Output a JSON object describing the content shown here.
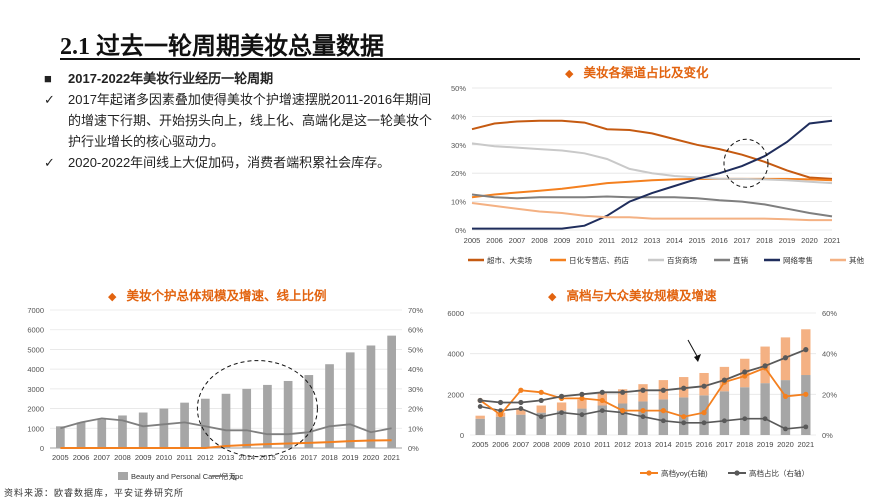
{
  "page_title": "2.1 过去一轮周期美妆总量数据",
  "bullets": [
    {
      "marker": "■",
      "text": "2017-2022年美妆行业经历一轮周期"
    },
    {
      "marker": "✓",
      "text": "2017年起诸多因素叠加使得美妆个护增速摆脱2011-2016年期间的增速下行期、开始拐头向上，线上化、高端化是这一轮美妆个护行业增长的核心驱动力。"
    },
    {
      "marker": "✓",
      "text": "2020-2022年间线上大促加码，消费者端积累社会库存。"
    }
  ],
  "source": "资料来源：欧睿数据库，平安证券研究所",
  "charts": [
    {
      "marker": "◆",
      "title": "美妆各渠道占比及变化"
    },
    {
      "marker": "◆",
      "title": "美妆个护总体规模及增速、线上比例"
    },
    {
      "marker": "◆",
      "title": "高档与大众美妆规模及增速"
    }
  ],
  "chart_data": [
    {
      "type": "line",
      "title": "美妆各渠道占比及变化",
      "x": [
        "2005",
        "2006",
        "2007",
        "2008",
        "2009",
        "2010",
        "2011",
        "2012",
        "2013",
        "2014",
        "2015",
        "2016",
        "2017",
        "2018",
        "2019",
        "2020",
        "2021"
      ],
      "ylim": [
        0,
        50
      ],
      "yticks": [
        "0%",
        "10%",
        "20%",
        "30%",
        "40%",
        "50%"
      ],
      "series": [
        {
          "name": "超市、大卖场",
          "color": "#c55a11",
          "values": [
            35.5,
            37.5,
            38.2,
            38.5,
            38.5,
            37.8,
            35.5,
            35.2,
            34,
            32,
            30,
            28.5,
            26.5,
            24,
            21,
            18.5,
            18
          ]
        },
        {
          "name": "日化专营店、药店",
          "color": "#f4801f",
          "values": [
            11.5,
            12.5,
            13.2,
            13.8,
            14.5,
            15.5,
            16.5,
            17,
            17.5,
            17.8,
            18,
            18,
            18,
            18,
            18,
            17.8,
            17.5
          ]
        },
        {
          "name": "百货商场",
          "color": "#c9c9c9",
          "values": [
            30.5,
            29.5,
            29,
            28.5,
            28,
            27,
            25,
            21.5,
            20,
            19,
            18.5,
            18,
            18,
            17.8,
            17.5,
            17,
            16.5
          ]
        },
        {
          "name": "直销",
          "color": "#7f7f7f",
          "values": [
            12.5,
            11.5,
            11.2,
            11.5,
            11.5,
            11.5,
            11.8,
            11.5,
            11.5,
            11.5,
            11.2,
            10.5,
            10,
            9,
            7.5,
            6,
            4.8
          ]
        },
        {
          "name": "网络零售",
          "color": "#1f2d5c",
          "values": [
            0.5,
            0.5,
            0.5,
            0.5,
            0.5,
            1.5,
            5,
            10,
            13,
            15.5,
            18,
            20,
            22.5,
            26,
            31,
            37.5,
            38.5
          ]
        },
        {
          "name": "其他",
          "color": "#f4b183",
          "values": [
            9.5,
            8.5,
            7.5,
            6.5,
            6,
            5,
            4.5,
            4.5,
            4,
            4,
            4,
            4,
            4,
            4,
            3.8,
            3.5,
            3.5
          ]
        }
      ]
    },
    {
      "type": "bar",
      "title": "美妆个护总体规模及增速、线上比例",
      "categories": [
        "2005",
        "2006",
        "2007",
        "2008",
        "2009",
        "2010",
        "2011",
        "2012",
        "2013",
        "2014",
        "2015",
        "2016",
        "2017",
        "2018",
        "2019",
        "2020",
        "2021"
      ],
      "ylim": [
        0,
        7000
      ],
      "yticks": [
        "0",
        "1000",
        "2000",
        "3000",
        "4000",
        "5000",
        "6000",
        "7000"
      ],
      "y2lim": [
        0,
        70
      ],
      "y2ticks": [
        "0%",
        "10%",
        "20%",
        "30%",
        "40%",
        "50%",
        "60%",
        "70%"
      ],
      "series": [
        {
          "name": "Beauty and Personal Care/亿元",
          "axis": "left",
          "color": "#a6a6a6",
          "values": [
            1100,
            1300,
            1450,
            1650,
            1800,
            2000,
            2300,
            2500,
            2750,
            3000,
            3200,
            3400,
            3700,
            4250,
            4850,
            5200,
            5700
          ]
        },
        {
          "axis": "right",
          "color": "#f4801f",
          "values": [
            0,
            0,
            0,
            0,
            0,
            0,
            0,
            0,
            1,
            1.5,
            2,
            2.3,
            2.6,
            3,
            3.5,
            3.8,
            3.9
          ]
        },
        {
          "name": "bpc",
          "axis": "right",
          "color": "#7f7f7f",
          "values": [
            10,
            13,
            15,
            14,
            11,
            12,
            13,
            11,
            9,
            9,
            7,
            7,
            8,
            11,
            12,
            8,
            10
          ]
        }
      ]
    },
    {
      "type": "bar",
      "title": "高档与大众美妆规模及增速",
      "categories": [
        "2005",
        "2006",
        "2007",
        "2008",
        "2009",
        "2010",
        "2011",
        "2012",
        "2013",
        "2014",
        "2015",
        "2016",
        "2017",
        "2018",
        "2019",
        "2020",
        "2021"
      ],
      "ylim": [
        0,
        6000
      ],
      "yticks": [
        "0",
        "2000",
        "4000",
        "6000"
      ],
      "y2lim": [
        0,
        60
      ],
      "y2ticks": [
        "0%",
        "20%",
        "40%",
        "60%"
      ],
      "series": [
        {
          "axis": "left",
          "color": "#a6a6a6",
          "values": [
            800,
            900,
            1000,
            1100,
            1200,
            1300,
            1450,
            1550,
            1650,
            1750,
            1850,
            1950,
            2150,
            2350,
            2550,
            2700,
            2950
          ]
        },
        {
          "axis": "left",
          "color": "#f4b183",
          "values": [
            150,
            200,
            250,
            350,
            400,
            450,
            600,
            700,
            850,
            950,
            1000,
            1100,
            1200,
            1400,
            1800,
            2100,
            2250
          ]
        },
        {
          "name": "高档yoy(右轴)",
          "axis": "right",
          "color": "#f4801f",
          "values": [
            17,
            10,
            22,
            21,
            18,
            18,
            17,
            12,
            12,
            12,
            9,
            11,
            26,
            29,
            33,
            19,
            20
          ]
        },
        {
          "name": "高档占比（右轴）",
          "axis": "right",
          "color": "#595959",
          "values": [
            17,
            16,
            16,
            17,
            19,
            20,
            21,
            21,
            22,
            22,
            23,
            24,
            27,
            31,
            34,
            38,
            42
          ]
        },
        {
          "axis": "right",
          "color": "#595959",
          "values": [
            14,
            12,
            13,
            9,
            11,
            10,
            12,
            11,
            9,
            7,
            6,
            6,
            7,
            8,
            8,
            3,
            4
          ]
        }
      ]
    }
  ]
}
